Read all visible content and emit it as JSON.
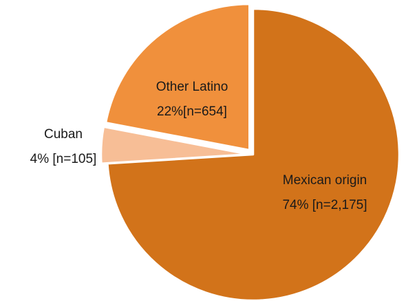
{
  "chart_data": {
    "type": "pie",
    "start_angle_deg": 0,
    "direction": "clockwise",
    "slice_border_color": "#ffffff",
    "slices": [
      {
        "name": "Mexican origin",
        "value": 74,
        "n_label": "74% [n=2,175]",
        "color": "#D2731A",
        "exploded": false
      },
      {
        "name": "Cuban",
        "value": 4,
        "n_label": "4% [n=105]",
        "color": "#F7BE96",
        "exploded": true
      },
      {
        "name": "Other Latino",
        "value": 22,
        "n_label": "22%[n=654]",
        "color": "#F0903C",
        "exploded": true
      }
    ]
  }
}
